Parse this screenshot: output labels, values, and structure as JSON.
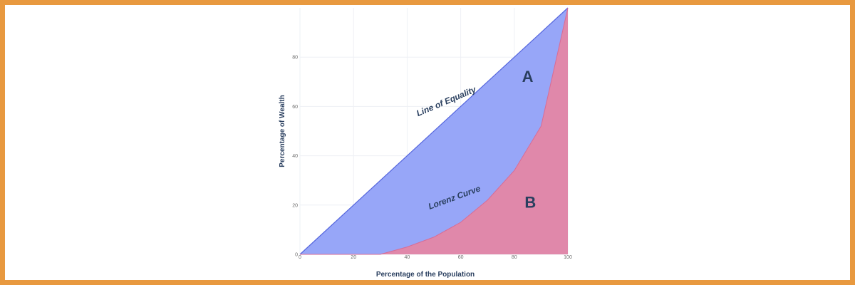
{
  "chart_data": {
    "type": "area",
    "xlabel": "Percentage of the Population",
    "ylabel": "Percentage of Wealth",
    "xlim": [
      0,
      100
    ],
    "ylim": [
      0,
      100
    ],
    "x_ticks": [
      0,
      20,
      40,
      60,
      80,
      100
    ],
    "y_ticks": [
      0,
      20,
      40,
      60,
      80
    ],
    "grid": true,
    "series": [
      {
        "key": "equality",
        "x": [
          0,
          100
        ],
        "y": [
          0,
          100
        ],
        "color": "#97a6f8"
      },
      {
        "key": "lorenz",
        "x": [
          0,
          10,
          20,
          30,
          40,
          50,
          60,
          70,
          80,
          90,
          100
        ],
        "y": [
          0,
          0,
          0,
          0,
          3,
          7,
          13,
          22,
          34,
          52,
          100
        ],
        "color": "#e088aa"
      }
    ],
    "annotations": [
      {
        "text": "Line of Equality",
        "x": 55,
        "y": 61,
        "angle": -23
      },
      {
        "text": "Lorenz Curve",
        "x": 58,
        "y": 22,
        "angle": -20
      },
      {
        "text": "A",
        "x": 85,
        "y": 70,
        "big": true
      },
      {
        "text": "B",
        "x": 86,
        "y": 19,
        "big": true
      }
    ],
    "colors": {
      "grid": "#eef0f5",
      "line": "#5566dd"
    }
  }
}
